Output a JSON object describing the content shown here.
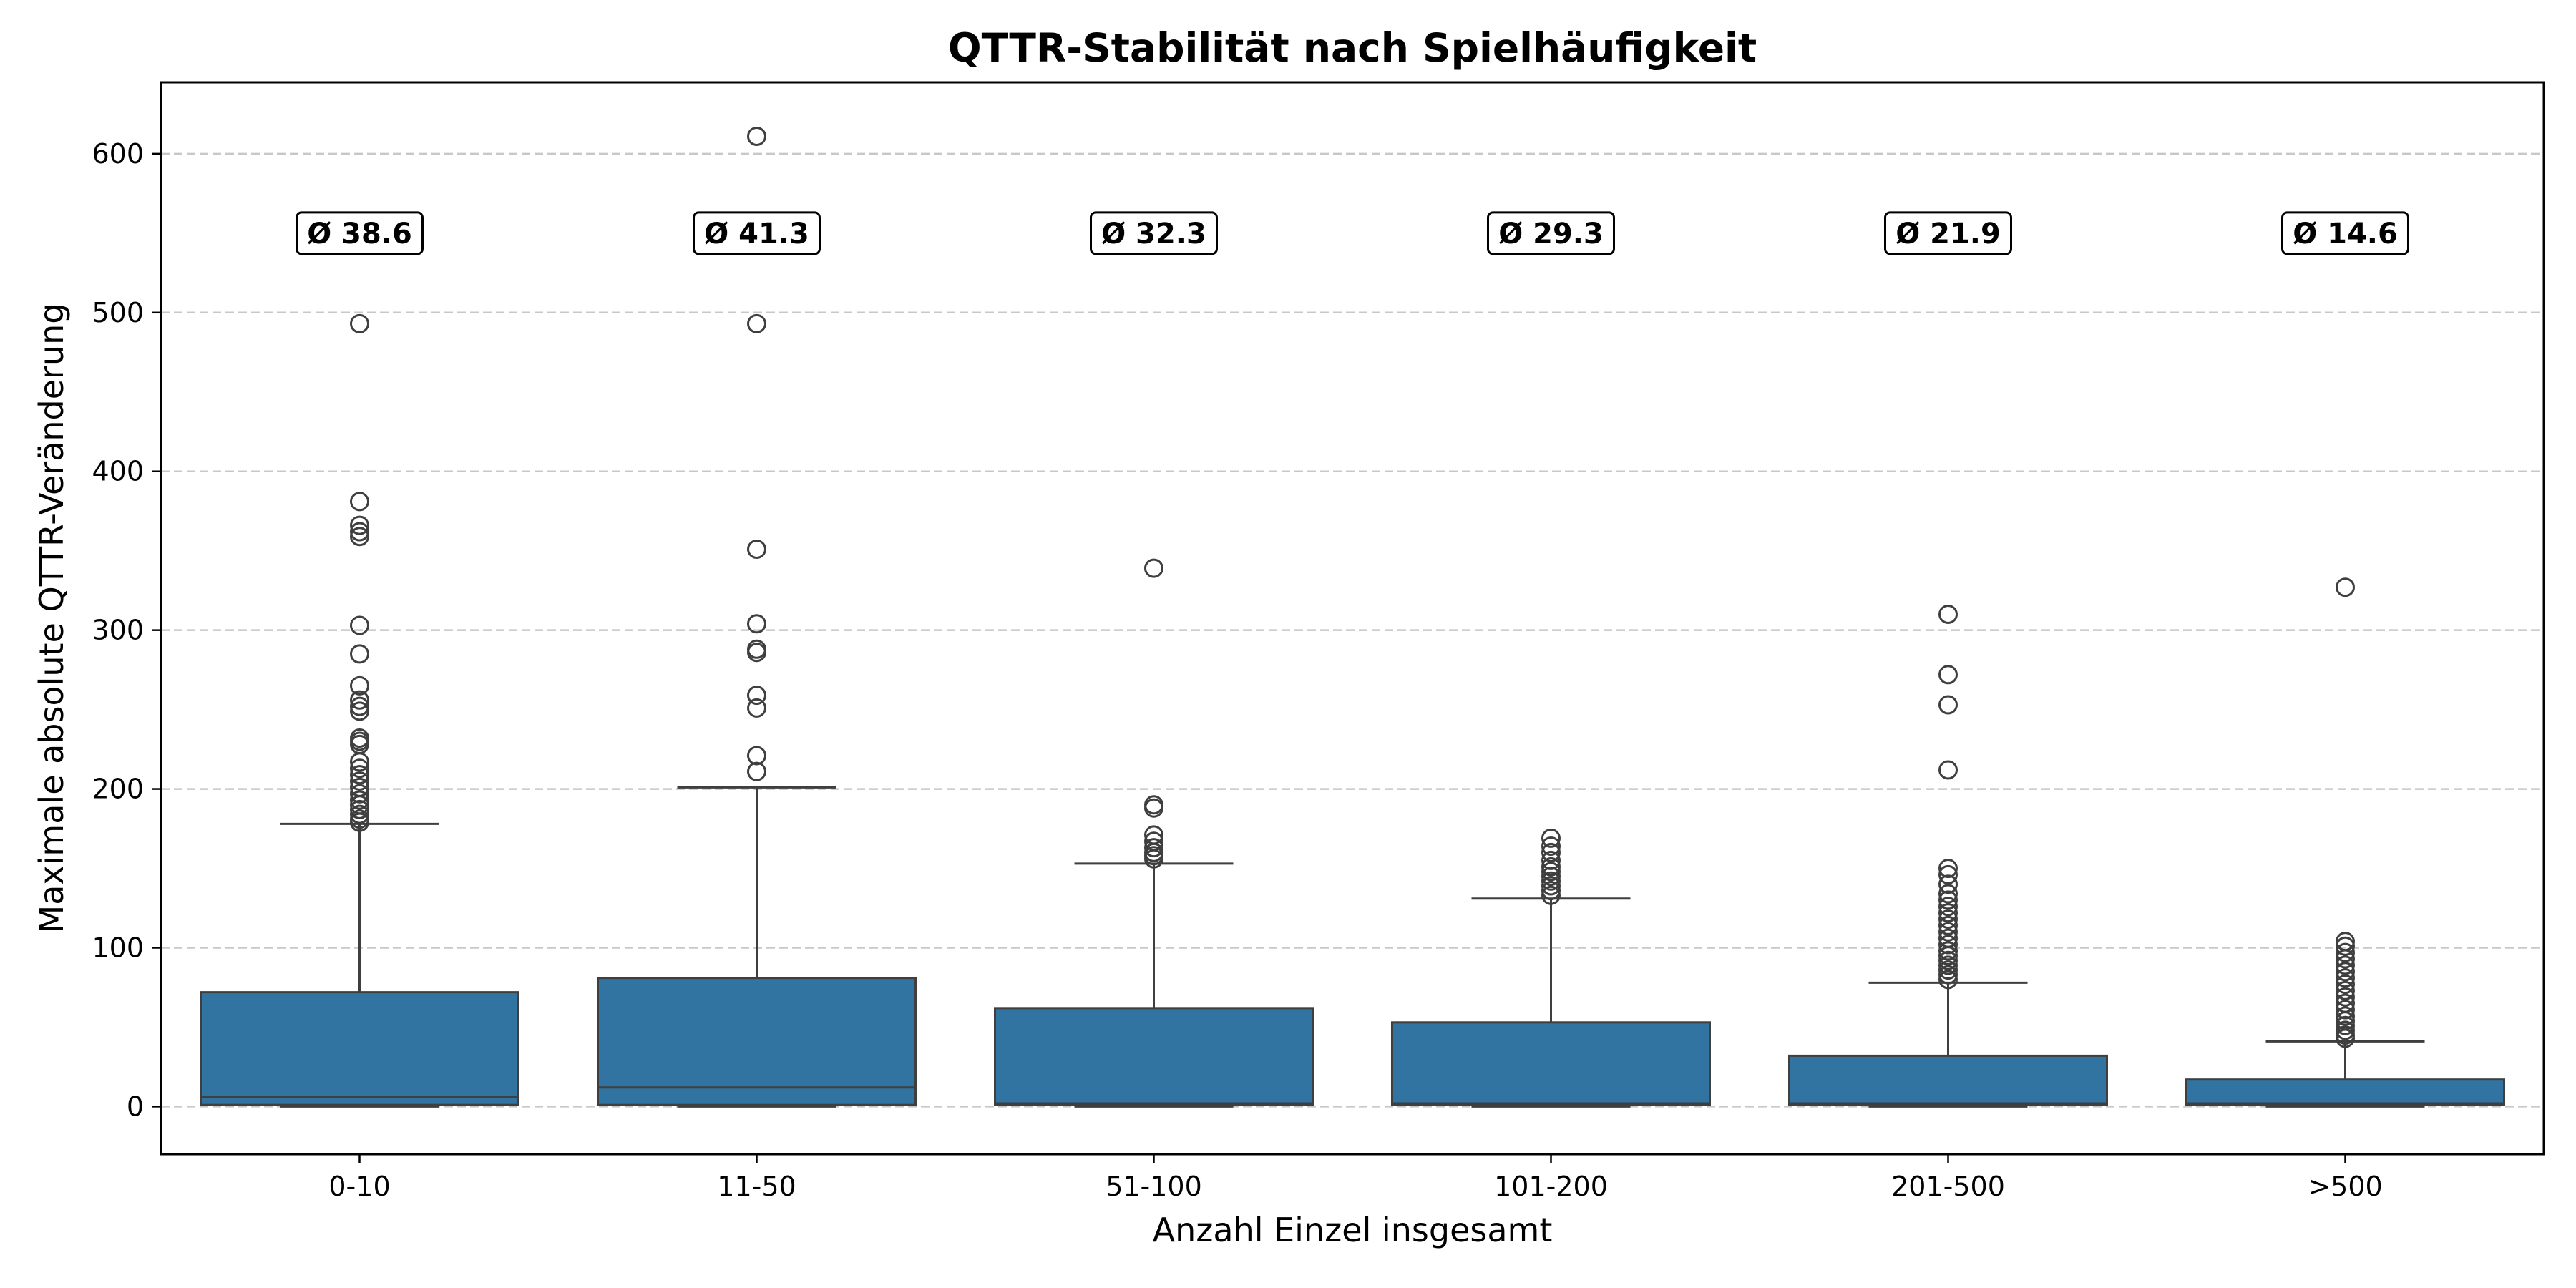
{
  "chart_data": {
    "type": "box",
    "title": "QTTR-Stabilität nach Spielhäufigkeit",
    "xlabel": "Anzahl Einzel insgesamt",
    "ylabel": "Maximale absolute QTTR-Veränderung",
    "ylim": [
      -30,
      645
    ],
    "yticks": [
      0,
      100,
      200,
      300,
      400,
      500,
      600
    ],
    "grid": "y-dashed",
    "box_color": "#3274a1",
    "line_color": "#3f3f3f",
    "categories": [
      "0-10",
      "11-50",
      "51-100",
      "101-200",
      "201-500",
      ">500"
    ],
    "boxes": [
      {
        "category": "0-10",
        "q1": 1,
        "median": 6,
        "q3": 72,
        "whisker_low": 0,
        "whisker_high": 178,
        "outliers": [
          493,
          381,
          366,
          362,
          359,
          303,
          285,
          265,
          256,
          252,
          249,
          232,
          230,
          228,
          217,
          213,
          209,
          205,
          201,
          197,
          193,
          190,
          187,
          184,
          181,
          179
        ]
      },
      {
        "category": "11-50",
        "q1": 1,
        "median": 12,
        "q3": 81,
        "whisker_low": 0,
        "whisker_high": 201,
        "outliers": [
          611,
          493,
          351,
          304,
          288,
          286,
          259,
          251,
          221,
          211
        ]
      },
      {
        "category": "51-100",
        "q1": 1,
        "median": 2,
        "q3": 62,
        "whisker_low": 0,
        "whisker_high": 153,
        "outliers": [
          339,
          190,
          188,
          171,
          167,
          163,
          160,
          158,
          156
        ]
      },
      {
        "category": "101-200",
        "q1": 1,
        "median": 2,
        "q3": 53,
        "whisker_low": 0,
        "whisker_high": 131,
        "outliers": [
          169,
          164,
          160,
          155,
          151,
          148,
          145,
          142,
          139,
          136,
          133
        ]
      },
      {
        "category": "201-500",
        "q1": 1,
        "median": 2,
        "q3": 32,
        "whisker_low": 0,
        "whisker_high": 78,
        "outliers": [
          310,
          272,
          253,
          212,
          150,
          146,
          140,
          134,
          130,
          126,
          122,
          118,
          114,
          110,
          106,
          102,
          98,
          95,
          92,
          89,
          86,
          83,
          80
        ]
      },
      {
        "category": ">500",
        "q1": 1,
        "median": 2,
        "q3": 17,
        "whisker_low": 0,
        "whisker_high": 41,
        "outliers": [
          327,
          104,
          101,
          97,
          93,
          89,
          85,
          81,
          77,
          73,
          69,
          65,
          61,
          57,
          54,
          51,
          48,
          45,
          43
        ]
      }
    ],
    "annotations": [
      {
        "category": "0-10",
        "text": "Ø 38.6",
        "y": 550
      },
      {
        "category": "11-50",
        "text": "Ø 41.3",
        "y": 550
      },
      {
        "category": "51-100",
        "text": "Ø 32.3",
        "y": 550
      },
      {
        "category": "101-200",
        "text": "Ø 29.3",
        "y": 550
      },
      {
        "category": "201-500",
        "text": "Ø 21.9",
        "y": 550
      },
      {
        "category": ">500",
        "text": "Ø 14.6",
        "y": 550
      }
    ]
  }
}
